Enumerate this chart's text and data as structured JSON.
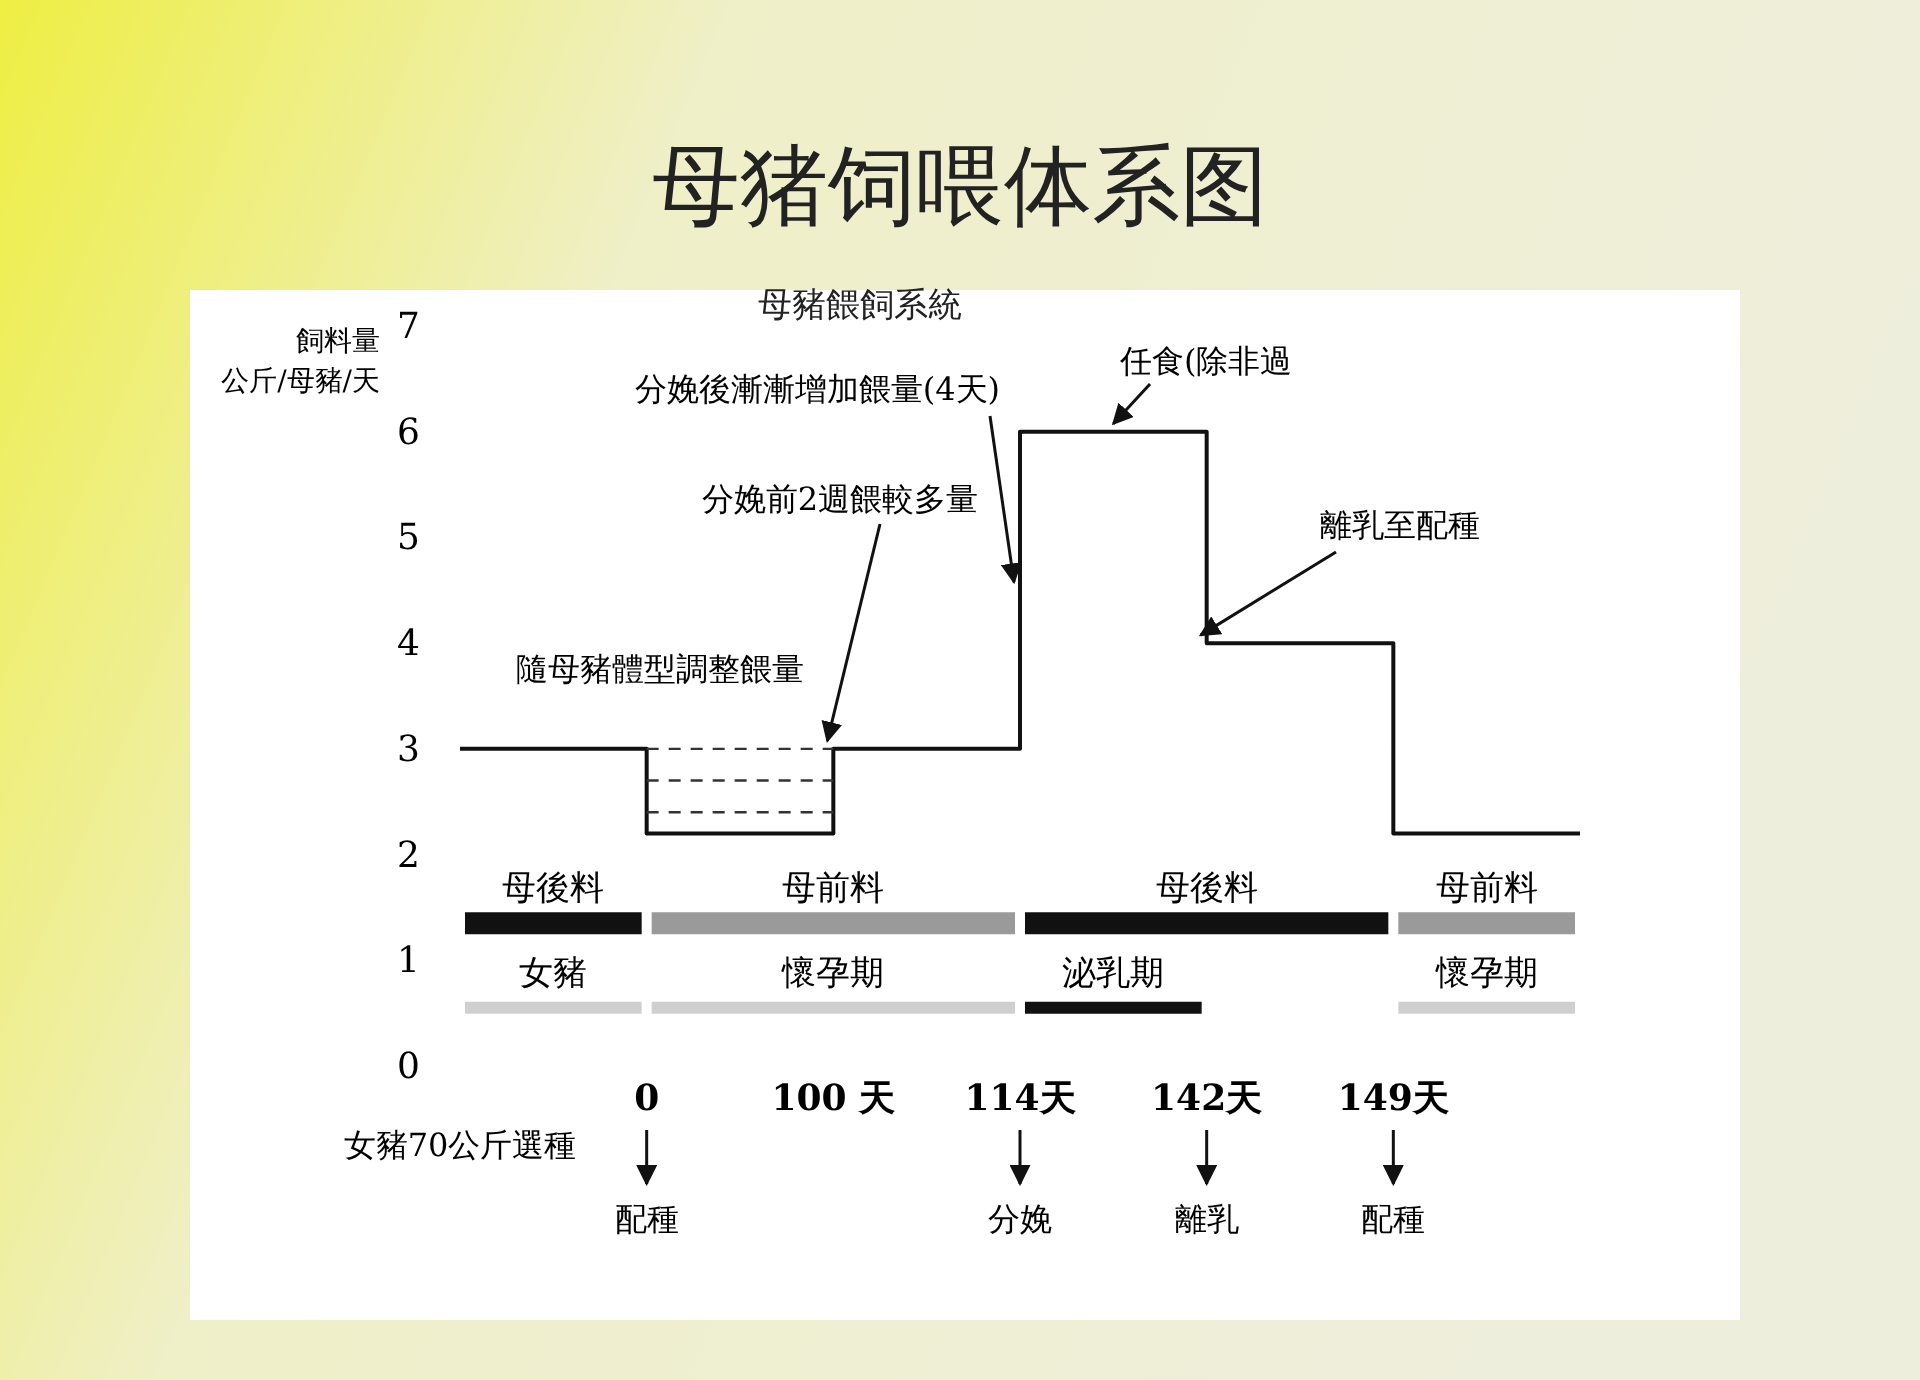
{
  "chart_data": {
    "type": "step",
    "title": "母猪饲喂体系图",
    "subtitle": "母豬餵飼系統",
    "ylabel": "飼料量公斤/母豬/天",
    "categories": [
      null,
      "0",
      "100 天",
      "114天",
      "142天",
      "149天",
      null
    ],
    "ylim": [
      0,
      7
    ],
    "yticks": [
      0,
      1,
      2,
      3,
      4,
      5,
      6,
      7
    ],
    "series": [
      {
        "color": "#111111",
        "values": [
          3,
          2.2,
          3,
          6,
          4,
          2.2,
          2.2
        ]
      },
      {
        "type": "line",
        "line_style": "dashed",
        "color": "#333333",
        "values": [
          null,
          3,
          3,
          null,
          null,
          null,
          null
        ]
      },
      {
        "type": "line",
        "line_style": "dashed",
        "color": "#333333",
        "values": [
          null,
          2.7,
          2.7,
          null,
          null,
          null,
          null
        ]
      },
      {
        "type": "line",
        "line_style": "dashed",
        "color": "#333333",
        "values": [
          null,
          2.4,
          2.4,
          null,
          null,
          null,
          null
        ]
      },
      {
        "type": "line",
        "name": "母後料",
        "color": "#111111",
        "values": [
          1.35,
          1.35,
          null,
          null,
          null,
          null,
          null
        ]
      },
      {
        "type": "line",
        "name": "母前料",
        "color": "#9a9a9a",
        "values": [
          null,
          1.35,
          1.35,
          1.35,
          null,
          null,
          null
        ]
      },
      {
        "type": "line",
        "name": "母後料",
        "color": "#111111",
        "values": [
          null,
          null,
          null,
          1.35,
          1.35,
          1.35,
          null
        ]
      },
      {
        "type": "line",
        "name": "母前料",
        "color": "#9a9a9a",
        "values": [
          null,
          null,
          null,
          null,
          null,
          1.35,
          1.35
        ]
      },
      {
        "type": "line",
        "name": "女豬",
        "color": "#cfcfcf",
        "values": [
          0.55,
          0.55,
          null,
          null,
          null,
          null,
          null
        ]
      },
      {
        "type": "line",
        "name": "懷孕期",
        "color": "#cfcfcf",
        "values": [
          null,
          0.55,
          0.55,
          0.55,
          null,
          null,
          null
        ]
      },
      {
        "type": "line",
        "name": "泌乳期",
        "color": "#111111",
        "values": [
          null,
          null,
          null,
          0.55,
          0.55,
          null,
          null
        ]
      },
      {
        "type": "line",
        "name": "懷孕期",
        "color": "#cfcfcf",
        "values": [
          null,
          null,
          null,
          null,
          null,
          0.55,
          0.55
        ]
      }
    ],
    "annotations": [
      {
        "text": "分娩後漸漸增加餵量(4天)",
        "x": "114天",
        "y": 4.5
      },
      {
        "text": "任食(除非過",
        "y": 6
      },
      {
        "text": "離乳至配種",
        "x": "142天",
        "y": 4
      },
      {
        "text": "分娩前2週餵較多量",
        "x": "100 天",
        "y": 3
      },
      "隨母豬體型調整餵量",
      "女豬70公斤選種",
      "配種",
      "分娩",
      "離乳",
      "配種"
    ]
  }
}
